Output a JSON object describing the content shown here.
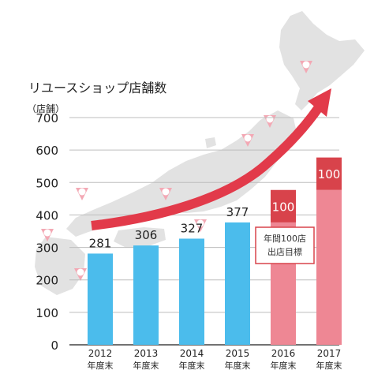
{
  "chart_data": {
    "type": "bar",
    "title": "リユースショップ店舗数",
    "ylabel": "（店舗）",
    "ylim": [
      0,
      700
    ],
    "yticks": [
      0,
      100,
      200,
      300,
      400,
      500,
      600,
      700
    ],
    "grid": true,
    "categories": [
      {
        "year": "2012",
        "suffix": "年度末"
      },
      {
        "year": "2013",
        "suffix": "年度末"
      },
      {
        "year": "2014",
        "suffix": "年度末"
      },
      {
        "year": "2015",
        "suffix": "年度末"
      },
      {
        "year": "2016",
        "suffix": "年度末"
      },
      {
        "year": "2017",
        "suffix": "年度末"
      }
    ],
    "series": [
      {
        "values": [
          281,
          306,
          327,
          377,
          377,
          477
        ],
        "kind": "actual"
      },
      {
        "values": [
          0,
          0,
          0,
          0,
          100,
          100
        ],
        "kind": "target"
      }
    ],
    "data_labels": [
      "281",
      "306",
      "327",
      "377",
      "100",
      "100"
    ],
    "annotation": [
      "年間100店",
      "出店目標"
    ],
    "colors": {
      "actual": "#4bbcec",
      "target_base": "#ee8794",
      "target_increment": "#d8434b",
      "arrow": "#e23a4a",
      "grid": "#bdbdbd",
      "map": "#e2e2e2",
      "map_badge": "#f3a8b4"
    }
  }
}
